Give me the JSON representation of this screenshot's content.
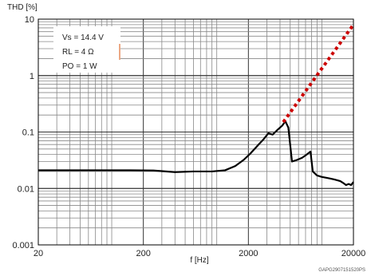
{
  "chart_data": {
    "type": "line",
    "ylabel": "THD [%]",
    "xlabel": "f [Hz]",
    "x_scale": "log",
    "y_scale": "log",
    "xlim": [
      20,
      20000
    ],
    "ylim": [
      0.001,
      10
    ],
    "grid": true,
    "x_tick_labels": [
      "20",
      "200",
      "2000",
      "20000"
    ],
    "y_tick_labels": [
      "10",
      "1",
      "0.1",
      "0.01",
      "0.001"
    ],
    "x_ticks": [
      20,
      200,
      2000,
      20000
    ],
    "y_ticks": [
      10,
      1,
      0.1,
      0.01,
      0.001
    ],
    "conditions": [
      "Vs = 14.4 V",
      "RL = 4 Ω",
      "PO = 1 W"
    ],
    "figure_code": "GAPG2907151520PS",
    "series": [
      {
        "color": "#000000",
        "style": "solid",
        "points": [
          [
            20,
            0.021
          ],
          [
            40,
            0.021
          ],
          [
            80,
            0.021
          ],
          [
            150,
            0.021
          ],
          [
            250,
            0.0208
          ],
          [
            400,
            0.0195
          ],
          [
            600,
            0.02
          ],
          [
            900,
            0.02
          ],
          [
            1200,
            0.021
          ],
          [
            1500,
            0.025
          ],
          [
            1800,
            0.032
          ],
          [
            2100,
            0.042
          ],
          [
            2500,
            0.06
          ],
          [
            2800,
            0.075
          ],
          [
            3100,
            0.095
          ],
          [
            3400,
            0.09
          ],
          [
            3800,
            0.11
          ],
          [
            4200,
            0.13
          ],
          [
            4500,
            0.155
          ],
          [
            4800,
            0.12
          ],
          [
            5200,
            0.03
          ],
          [
            5800,
            0.032
          ],
          [
            6500,
            0.035
          ],
          [
            7200,
            0.04
          ],
          [
            7800,
            0.045
          ],
          [
            8200,
            0.02
          ],
          [
            9000,
            0.017
          ],
          [
            10000,
            0.016
          ],
          [
            11000,
            0.0155
          ],
          [
            12000,
            0.015
          ],
          [
            13000,
            0.0145
          ],
          [
            14000,
            0.014
          ],
          [
            15000,
            0.0135
          ],
          [
            16000,
            0.0125
          ],
          [
            17000,
            0.0115
          ],
          [
            18000,
            0.012
          ],
          [
            19000,
            0.0115
          ],
          [
            20000,
            0.013
          ]
        ]
      },
      {
        "color": "#cc0000",
        "style": "dotted",
        "points": [
          [
            4300,
            0.15
          ],
          [
            20000,
            8
          ]
        ]
      }
    ]
  }
}
